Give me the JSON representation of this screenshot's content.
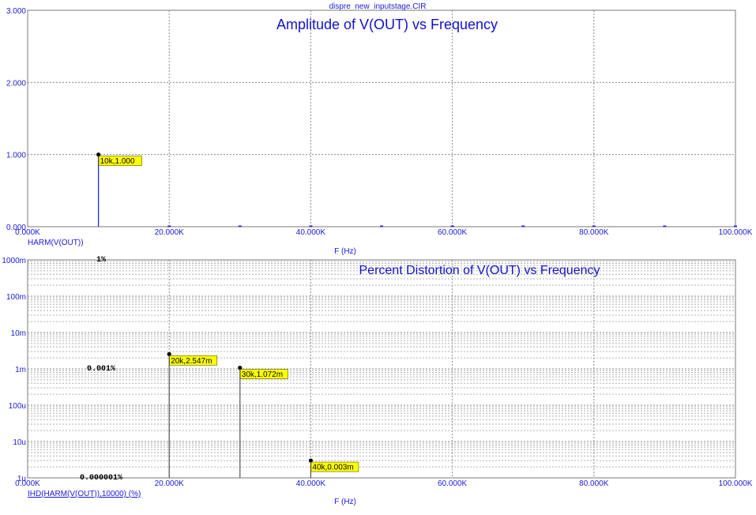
{
  "window_title": "dispre_new_inputstage.CIR",
  "chart_data": [
    {
      "type": "bar",
      "title": "Amplitude of V(OUT) vs Frequency",
      "xlabel": "F (Hz)",
      "ylabel": "",
      "trace_label": "HARM(V(OUT))",
      "xlim": [
        0,
        100000
      ],
      "ylim": [
        0,
        3
      ],
      "xticks": [
        0,
        20000,
        40000,
        60000,
        80000,
        100000
      ],
      "xtick_labels": [
        "0.000K",
        "20.000K",
        "40.000K",
        "60.000K",
        "80.000K",
        "100.000K"
      ],
      "yticks": [
        0,
        1,
        2,
        3
      ],
      "ytick_labels": [
        "0.000",
        "1.000",
        "2.000",
        "3.000"
      ],
      "grid": true,
      "trace_color": "#2a2ad8",
      "x": [
        10000,
        20000,
        30000,
        40000,
        50000,
        60000,
        70000,
        80000,
        90000,
        100000
      ],
      "values": [
        1.0,
        0,
        0,
        0,
        0,
        0,
        0,
        0,
        0,
        0
      ],
      "annotations": [
        {
          "x": 10000,
          "y": 1.0,
          "text": "10k,1.000"
        }
      ]
    },
    {
      "type": "bar",
      "title": "Percent Distortion of V(OUT) vs Frequency",
      "xlabel": "F (Hz)",
      "ylabel": "",
      "trace_label": "IHD(HARM(V(OUT)),10000) (%)",
      "xscale": "linear",
      "yscale": "log",
      "xlim": [
        0,
        100000
      ],
      "ylim": [
        1e-06,
        1
      ],
      "xticks": [
        0,
        20000,
        40000,
        60000,
        80000,
        100000
      ],
      "xtick_labels": [
        "0.000K",
        "20.000K",
        "40.000K",
        "60.000K",
        "80.000K",
        "100.000K"
      ],
      "yticks": [
        1e-06,
        1e-05,
        0.0001,
        0.001,
        0.01,
        0.1,
        1
      ],
      "ytick_labels": [
        "1u",
        "10u",
        "100u",
        "1m",
        "10m",
        "100m",
        "1000m"
      ],
      "grid": true,
      "trace_color": "#555555",
      "x": [
        20000,
        30000,
        40000
      ],
      "values": [
        0.002547,
        0.001072,
        3e-06
      ],
      "annotations": [
        {
          "x": 20000,
          "y": 0.002547,
          "text": "20k,2.547m"
        },
        {
          "x": 30000,
          "y": 0.001072,
          "text": "30k,1.072m"
        },
        {
          "x": 40000,
          "y": 3e-06,
          "text": "40k,0.003m"
        }
      ],
      "percent_markers": [
        {
          "y": 1,
          "text": "1%"
        },
        {
          "y": 0.001,
          "text": "0.001%"
        },
        {
          "y": 1e-06,
          "text": "0.000001%"
        }
      ]
    }
  ]
}
